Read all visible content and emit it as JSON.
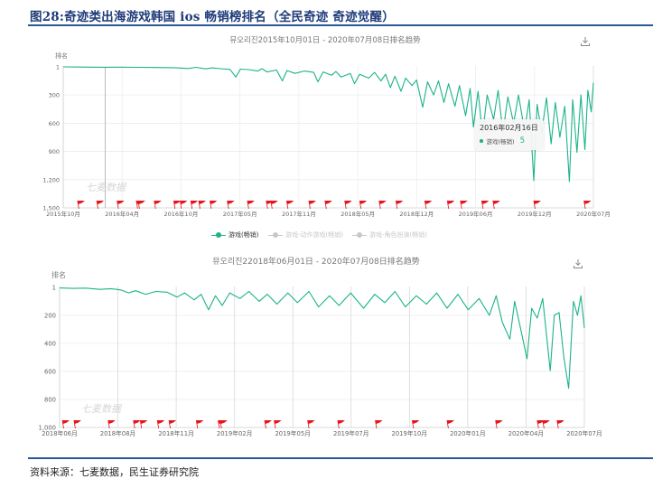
{
  "figure_title": "图28:奇迹类出海游戏韩国 ios 畅销榜排名（全民奇迹  奇迹觉醒）",
  "source": "资料来源：七麦数据，民生证券研究院",
  "colors": {
    "series": "#1bb38a",
    "flag": "#e8141b",
    "rule": "#2b5797",
    "legend_inactive": "#c8c8c8"
  },
  "icons": {
    "download": "download-icon",
    "flag": "flag-icon"
  },
  "chart_data": [
    {
      "type": "line",
      "title": "뮤오리진2015年10月01日 - 2020年07月08日排名趋势",
      "ylabel": "排名",
      "y_inverted": true,
      "ylim": [
        1,
        1500
      ],
      "yticks": [
        "1",
        "300",
        "600",
        "900",
        "1,200",
        "1,500"
      ],
      "ytick_values": [
        1,
        300,
        600,
        900,
        1200,
        1500
      ],
      "xlim": [
        "2015-10-01",
        "2020-07-08"
      ],
      "xticks": [
        "2015年10月",
        "2016年04月",
        "2016年10月",
        "2017年05月",
        "2017年11月",
        "2018年05月",
        "2018年12月",
        "2019年06月",
        "2019年12月",
        "2020年07月"
      ],
      "grid": true,
      "watermark": "七麦数据",
      "legend": {
        "position": "bottom",
        "items": [
          {
            "name": "游戏(畅销)",
            "active": true
          },
          {
            "name": "游戏-动作游戏(畅销)",
            "active": false
          },
          {
            "name": "游戏-角色扮演(畅销)",
            "active": false
          }
        ]
      },
      "tooltip": {
        "date": "2016年02月16日",
        "series": "游戏(畅销)",
        "value": "5"
      },
      "series": [
        {
          "name": "游戏(畅销)",
          "points": [
            [
              "2015-10-01",
              1
            ],
            [
              "2015-12-01",
              3
            ],
            [
              "2016-02-16",
              5
            ],
            [
              "2016-04-01",
              4
            ],
            [
              "2016-06-01",
              6
            ],
            [
              "2016-08-01",
              8
            ],
            [
              "2016-10-01",
              10
            ],
            [
              "2016-11-15",
              18
            ],
            [
              "2016-12-10",
              6
            ],
            [
              "2017-01-10",
              22
            ],
            [
              "2017-02-01",
              12
            ],
            [
              "2017-03-01",
              20
            ],
            [
              "2017-04-01",
              28
            ],
            [
              "2017-04-20",
              110
            ],
            [
              "2017-05-05",
              25
            ],
            [
              "2017-06-01",
              30
            ],
            [
              "2017-07-01",
              45
            ],
            [
              "2017-07-15",
              20
            ],
            [
              "2017-08-01",
              55
            ],
            [
              "2017-09-01",
              35
            ],
            [
              "2017-09-20",
              150
            ],
            [
              "2017-10-05",
              40
            ],
            [
              "2017-11-01",
              70
            ],
            [
              "2017-12-01",
              45
            ],
            [
              "2018-01-01",
              60
            ],
            [
              "2018-01-15",
              160
            ],
            [
              "2018-02-01",
              55
            ],
            [
              "2018-03-01",
              90
            ],
            [
              "2018-03-15",
              50
            ],
            [
              "2018-04-01",
              110
            ],
            [
              "2018-05-01",
              70
            ],
            [
              "2018-05-15",
              180
            ],
            [
              "2018-06-01",
              80
            ],
            [
              "2018-07-01",
              120
            ],
            [
              "2018-07-20",
              60
            ],
            [
              "2018-08-10",
              150
            ],
            [
              "2018-08-25",
              80
            ],
            [
              "2018-09-10",
              220
            ],
            [
              "2018-09-25",
              100
            ],
            [
              "2018-10-15",
              260
            ],
            [
              "2018-10-30",
              120
            ],
            [
              "2018-11-20",
              200
            ],
            [
              "2018-12-05",
              140
            ],
            [
              "2018-12-25",
              430
            ],
            [
              "2019-01-10",
              160
            ],
            [
              "2019-01-30",
              300
            ],
            [
              "2019-02-15",
              150
            ],
            [
              "2019-03-05",
              380
            ],
            [
              "2019-03-20",
              180
            ],
            [
              "2019-04-10",
              420
            ],
            [
              "2019-04-25",
              200
            ],
            [
              "2019-05-15",
              520
            ],
            [
              "2019-05-30",
              230
            ],
            [
              "2019-06-10",
              640
            ],
            [
              "2019-06-25",
              260
            ],
            [
              "2019-07-10",
              720
            ],
            [
              "2019-07-25",
              300
            ],
            [
              "2019-08-15",
              560
            ],
            [
              "2019-08-30",
              250
            ],
            [
              "2019-09-15",
              700
            ],
            [
              "2019-10-01",
              320
            ],
            [
              "2019-10-20",
              600
            ],
            [
              "2019-11-05",
              300
            ],
            [
              "2019-11-25",
              680
            ],
            [
              "2019-12-10",
              350
            ],
            [
              "2019-12-25",
              1210
            ],
            [
              "2020-01-05",
              400
            ],
            [
              "2020-01-20",
              700
            ],
            [
              "2020-02-05",
              330
            ],
            [
              "2020-02-20",
              820
            ],
            [
              "2020-03-05",
              380
            ],
            [
              "2020-03-20",
              750
            ],
            [
              "2020-04-05",
              420
            ],
            [
              "2020-04-20",
              1220
            ],
            [
              "2020-05-01",
              350
            ],
            [
              "2020-05-15",
              910
            ],
            [
              "2020-05-28",
              300
            ],
            [
              "2020-06-10",
              880
            ],
            [
              "2020-06-20",
              250
            ],
            [
              "2020-07-01",
              480
            ],
            [
              "2020-07-08",
              170
            ]
          ]
        }
      ],
      "events": [
        "2015-11-17",
        "2016-01-19",
        "2016-03-26",
        "2016-05-28",
        "2016-06-03",
        "2016-07-26",
        "2016-09-28",
        "2016-10-19",
        "2016-11-23",
        "2016-12-19",
        "2017-01-25",
        "2017-03-23",
        "2017-05-28",
        "2017-07-29",
        "2017-08-13",
        "2017-10-04",
        "2017-12-16",
        "2018-02-07",
        "2018-04-13",
        "2018-06-01",
        "2018-08-04",
        "2018-09-28",
        "2019-01-01",
        "2019-03-16",
        "2019-04-28",
        "2019-07-07",
        "2019-08-13",
        "2019-12-25",
        "2020-06-07"
      ]
    },
    {
      "type": "line",
      "title": "뮤오리진22018年06月01日 - 2020年07月08日排名趋势",
      "ylabel": "排名",
      "y_inverted": true,
      "ylim": [
        1,
        1000
      ],
      "yticks": [
        "1",
        "200",
        "400",
        "600",
        "800",
        "1,000"
      ],
      "ytick_values": [
        1,
        200,
        400,
        600,
        800,
        1000
      ],
      "xlim": [
        "2018-06-01",
        "2020-07-08"
      ],
      "xticks": [
        "2018年06月",
        "2018年08月",
        "2018年11月",
        "2019年02月",
        "2019年05月",
        "2019年07月",
        "2019年10月",
        "2020年01月",
        "2020年04月",
        "2020年07月"
      ],
      "grid": true,
      "watermark": "七麦数据",
      "series": [
        {
          "name": "游戏(畅销)",
          "points": [
            [
              "2018-06-01",
              5
            ],
            [
              "2018-06-20",
              8
            ],
            [
              "2018-07-10",
              6
            ],
            [
              "2018-07-30",
              15
            ],
            [
              "2018-08-15",
              10
            ],
            [
              "2018-08-30",
              20
            ],
            [
              "2018-09-10",
              40
            ],
            [
              "2018-09-20",
              25
            ],
            [
              "2018-10-05",
              50
            ],
            [
              "2018-10-20",
              30
            ],
            [
              "2018-11-05",
              35
            ],
            [
              "2018-11-20",
              70
            ],
            [
              "2018-12-01",
              40
            ],
            [
              "2018-12-15",
              90
            ],
            [
              "2018-12-25",
              50
            ],
            [
              "2019-01-05",
              160
            ],
            [
              "2019-01-15",
              60
            ],
            [
              "2019-01-25",
              130
            ],
            [
              "2019-02-05",
              40
            ],
            [
              "2019-02-20",
              80
            ],
            [
              "2019-03-05",
              30
            ],
            [
              "2019-03-20",
              100
            ],
            [
              "2019-04-01",
              50
            ],
            [
              "2019-04-15",
              120
            ],
            [
              "2019-05-01",
              40
            ],
            [
              "2019-05-15",
              110
            ],
            [
              "2019-06-01",
              30
            ],
            [
              "2019-06-15",
              140
            ],
            [
              "2019-07-01",
              60
            ],
            [
              "2019-07-15",
              130
            ],
            [
              "2019-08-01",
              40
            ],
            [
              "2019-08-20",
              150
            ],
            [
              "2019-09-05",
              50
            ],
            [
              "2019-09-20",
              110
            ],
            [
              "2019-10-05",
              30
            ],
            [
              "2019-10-20",
              140
            ],
            [
              "2019-11-05",
              60
            ],
            [
              "2019-11-20",
              120
            ],
            [
              "2019-12-05",
              40
            ],
            [
              "2019-12-20",
              150
            ],
            [
              "2020-01-05",
              50
            ],
            [
              "2020-01-20",
              160
            ],
            [
              "2020-02-05",
              80
            ],
            [
              "2020-02-20",
              200
            ],
            [
              "2020-03-01",
              60
            ],
            [
              "2020-03-10",
              250
            ],
            [
              "2020-03-21",
              370
            ],
            [
              "2020-03-28",
              100
            ],
            [
              "2020-04-05",
              280
            ],
            [
              "2020-04-15",
              510
            ],
            [
              "2020-04-22",
              150
            ],
            [
              "2020-04-30",
              220
            ],
            [
              "2020-05-08",
              80
            ],
            [
              "2020-05-19",
              595
            ],
            [
              "2020-05-25",
              200
            ],
            [
              "2020-06-01",
              180
            ],
            [
              "2020-06-08",
              500
            ],
            [
              "2020-06-15",
              720
            ],
            [
              "2020-06-22",
              100
            ],
            [
              "2020-06-28",
              200
            ],
            [
              "2020-07-03",
              60
            ],
            [
              "2020-07-08",
              290
            ]
          ]
        }
      ],
      "events": [
        "2018-06-05",
        "2018-06-22",
        "2018-08-11",
        "2018-09-17",
        "2018-09-27",
        "2018-10-22",
        "2018-11-08",
        "2018-12-18",
        "2019-01-19",
        "2019-01-22",
        "2019-03-28",
        "2019-04-11",
        "2019-05-30",
        "2019-07-13",
        "2019-09-06",
        "2019-10-30",
        "2019-12-20",
        "2020-02-29",
        "2020-04-30",
        "2020-05-08",
        "2020-05-29"
      ]
    }
  ]
}
